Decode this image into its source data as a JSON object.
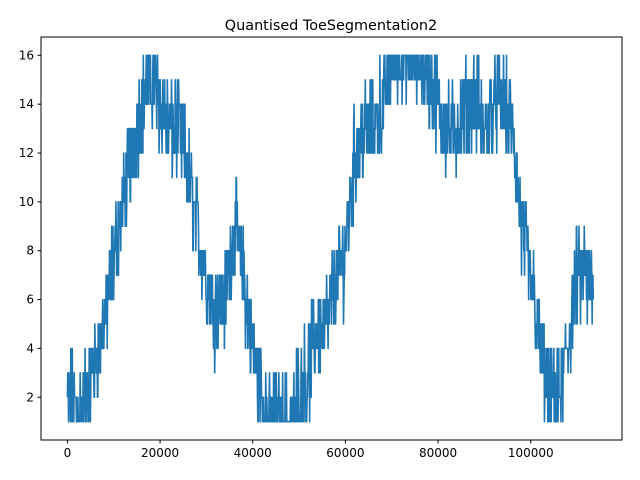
{
  "chart_data": {
    "type": "line",
    "title": "Quantised ToeSegmentation2",
    "xlabel": "",
    "ylabel": "",
    "xlim": [
      -5700,
      119700
    ],
    "ylim": [
      0.25,
      16.75
    ],
    "x_ticks": [
      0,
      20000,
      40000,
      60000,
      80000,
      100000
    ],
    "x_tick_labels": [
      "0",
      "20000",
      "40000",
      "60000",
      "80000",
      "100000"
    ],
    "y_ticks": [
      2,
      4,
      6,
      8,
      10,
      12,
      14,
      16
    ],
    "y_tick_labels": [
      "2",
      "4",
      "6",
      "8",
      "10",
      "12",
      "14",
      "16"
    ],
    "grid": false,
    "legend": "none",
    "color": "#1f77b4",
    "series": [
      {
        "x": [
          0,
          2000,
          4000,
          6000,
          8000,
          10000,
          12000,
          14000,
          16000,
          18000,
          20000,
          22000,
          24000,
          26000,
          28000,
          30000,
          32000,
          34000,
          36000,
          38000,
          40000,
          42000,
          44000,
          46000,
          48000,
          50000,
          52000,
          54000,
          56000,
          58000,
          60000,
          62000,
          64000,
          66000,
          68000,
          70000,
          72000,
          74000,
          76000,
          78000,
          80000,
          82000,
          84000,
          86000,
          88000,
          90000,
          92000,
          94000,
          96000,
          98000,
          100000,
          102000,
          104000,
          106000,
          108000,
          110000,
          112000,
          113500
        ],
        "y": [
          2,
          1.5,
          2,
          3.5,
          5,
          7.5,
          10,
          12,
          14,
          15,
          14,
          13,
          13,
          11,
          9,
          7,
          5.5,
          6,
          9,
          7,
          4,
          2,
          1,
          1,
          1,
          2,
          3,
          5,
          5,
          7,
          8,
          12,
          13,
          13,
          14,
          16,
          16,
          16,
          16,
          15,
          14,
          13,
          13,
          14,
          14,
          13,
          14,
          14,
          13,
          9,
          7,
          4,
          2,
          2,
          4,
          7,
          7,
          6
        ]
      }
    ]
  }
}
